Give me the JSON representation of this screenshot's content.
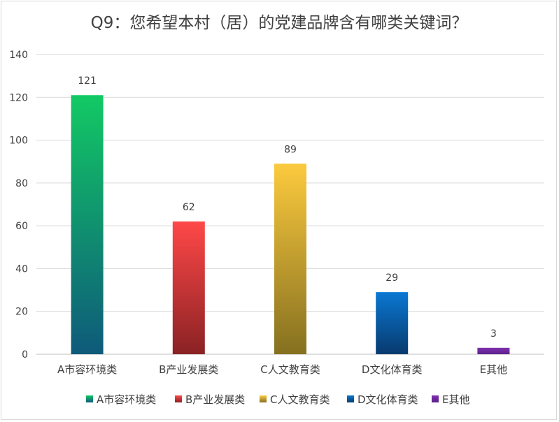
{
  "chart_data": {
    "type": "bar",
    "title": "Q9：您希望本村（居）的党建品牌含有哪类关键词？",
    "xlabel": "",
    "ylabel": "",
    "categories": [
      "A市容环境类",
      "B产业发展类",
      "C人文教育类",
      "D文化体育类",
      "E其他"
    ],
    "values": [
      121,
      62,
      89,
      29,
      3
    ],
    "data_labels": [
      "121",
      "62",
      "89",
      "29",
      "3"
    ],
    "ylim": [
      0,
      140
    ],
    "yticks": [
      0,
      20,
      40,
      60,
      80,
      100,
      120,
      140
    ],
    "ytick_labels": [
      "0",
      "20",
      "40",
      "60",
      "80",
      "100",
      "120",
      "140"
    ],
    "grid": true,
    "legend_position": "bottom",
    "legend": [
      "A市容环境类",
      "B产业发展类",
      "C人文教育类",
      "D文化体育类",
      "E其他"
    ],
    "colors": [
      {
        "top": "#12c964",
        "bottom": "#0e5a7a"
      },
      {
        "top": "#ff4848",
        "bottom": "#8a2224"
      },
      {
        "top": "#fcca3e",
        "bottom": "#857020"
      },
      {
        "top": "#0a78d2",
        "bottom": "#083a6e"
      },
      {
        "top": "#8030b0",
        "bottom": "#5b2189"
      }
    ]
  }
}
